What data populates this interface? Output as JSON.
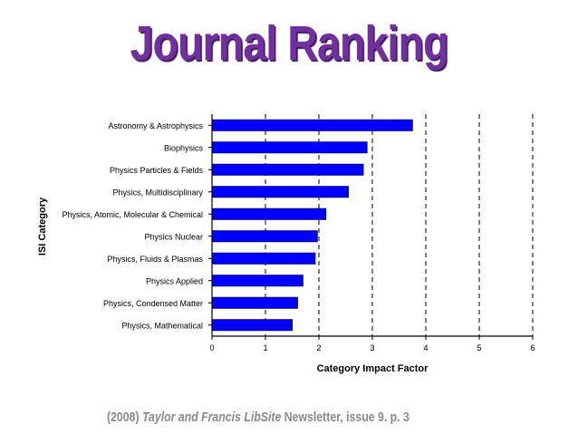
{
  "title": "Journal Ranking",
  "citation": {
    "year": "(2008)",
    "publisher": "Taylor and Francis",
    "libsite": "LibSite",
    "rest": "Newsletter, issue 9. p. 3"
  },
  "chart_data": {
    "type": "bar",
    "orientation": "horizontal",
    "categories": [
      "Astronomy & Astrophysics",
      "Biophysics",
      "Physics Particles & Fields",
      "Physics, Multidisciplinary",
      "Physics, Atomic, Molecular & Chemical",
      "Physics Nuclear",
      "Physics, Fluids & Plasmas",
      "Physics Applied",
      "Physics, Condensed Matter",
      "Physics, Mathematical"
    ],
    "values": [
      3.75,
      2.9,
      2.83,
      2.55,
      2.13,
      1.97,
      1.93,
      1.7,
      1.6,
      1.5
    ],
    "xlabel": "Category Impact Factor",
    "ylabel": "ISI Category",
    "xlim": [
      0,
      6
    ],
    "xticks": [
      "0",
      "1",
      "2",
      "3",
      "4",
      "5",
      "6"
    ],
    "grid": "vertical-dashed",
    "bar_color": "#0000ff",
    "bar_border": "#000080"
  }
}
